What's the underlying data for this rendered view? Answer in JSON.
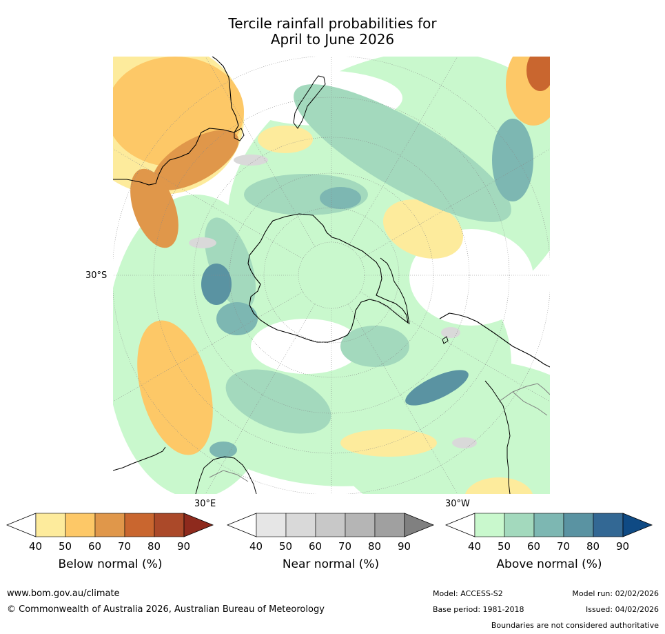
{
  "title": {
    "line1": "Tercile rainfall probabilities for",
    "line2": "April to June 2026"
  },
  "map": {
    "projection": "south polar stereographic",
    "lat_labels": [
      "30°S"
    ],
    "lon_labels": [
      "30°E",
      "30°W"
    ],
    "colors": {
      "land_background": "#ffffff",
      "coast": "#000000",
      "borders": "#7f7f7f",
      "grid": "#888888"
    }
  },
  "colorbars": [
    {
      "id": "below",
      "label": "Below normal (%)",
      "ticks": [
        "40",
        "50",
        "60",
        "70",
        "80",
        "90"
      ],
      "colors": [
        "#ffffff",
        "#fdeb9c",
        "#fdc867",
        "#e0974a",
        "#c9662f",
        "#ab4929",
        "#8e2a1d"
      ]
    },
    {
      "id": "near",
      "label": "Near normal (%)",
      "ticks": [
        "40",
        "50",
        "60",
        "70",
        "80",
        "90"
      ],
      "colors": [
        "#ffffff",
        "#e6e6e6",
        "#d9d9d9",
        "#c8c8c8",
        "#b5b5b5",
        "#a0a0a0",
        "#808080"
      ]
    },
    {
      "id": "above",
      "label": "Above normal (%)",
      "ticks": [
        "40",
        "50",
        "60",
        "70",
        "80",
        "90"
      ],
      "colors": [
        "#ffffff",
        "#c9f8cd",
        "#a3d9bd",
        "#7db7b2",
        "#5a93a2",
        "#336894",
        "#0f4a84"
      ]
    }
  ],
  "footer": {
    "url": "www.bom.gov.au/climate",
    "copyright": "© Commonwealth of Australia 2026, Australian Bureau of Meteorology",
    "model": "Model: ACCESS-S2",
    "base_period": "Base period: 1981-2018",
    "model_run": "Model run: 02/02/2026",
    "issued": "Issued: 04/02/2026",
    "disclaimer": "Boundaries are not considered authoritative"
  }
}
